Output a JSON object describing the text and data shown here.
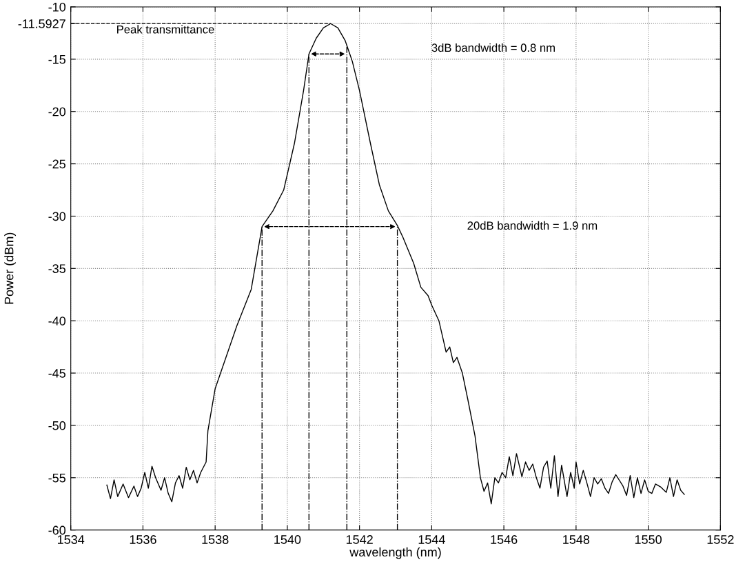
{
  "chart_data": {
    "type": "line",
    "xlabel": "wavelength (nm)",
    "ylabel": "Power (dBm)",
    "x": [
      1535.0,
      1535.1,
      1535.2,
      1535.3,
      1535.45,
      1535.6,
      1535.75,
      1535.85,
      1535.95,
      1536.05,
      1536.15,
      1536.25,
      1536.35,
      1536.5,
      1536.6,
      1536.7,
      1536.8,
      1536.9,
      1537.0,
      1537.1,
      1537.2,
      1537.3,
      1537.4,
      1537.5,
      1537.6,
      1537.75,
      1537.8,
      1537.9,
      1538.0,
      1538.3,
      1538.6,
      1539.0,
      1539.3,
      1539.6,
      1539.9,
      1540.2,
      1540.45,
      1540.6,
      1540.8,
      1541.0,
      1541.2,
      1541.4,
      1541.6,
      1541.8,
      1542.0,
      1542.3,
      1542.55,
      1542.8,
      1543.05,
      1543.2,
      1543.5,
      1543.7,
      1543.9,
      1544.0,
      1544.2,
      1544.4,
      1544.5,
      1544.6,
      1544.7,
      1544.85,
      1545.0,
      1545.2,
      1545.35,
      1545.45,
      1545.55,
      1545.65,
      1545.75,
      1545.85,
      1545.95,
      1546.05,
      1546.15,
      1546.25,
      1546.35,
      1546.5,
      1546.6,
      1546.7,
      1546.8,
      1546.9,
      1547.0,
      1547.1,
      1547.2,
      1547.3,
      1547.4,
      1547.5,
      1547.6,
      1547.75,
      1547.85,
      1547.95,
      1548.0,
      1548.1,
      1548.2,
      1548.3,
      1548.4,
      1548.5,
      1548.6,
      1548.7,
      1548.8,
      1548.9,
      1549.0,
      1549.1,
      1549.3,
      1549.4,
      1549.5,
      1549.6,
      1549.7,
      1549.8,
      1549.9,
      1550.0,
      1550.1,
      1550.2,
      1550.35,
      1550.5,
      1550.6,
      1550.7,
      1550.8,
      1550.9,
      1551.0
    ],
    "series": [
      {
        "color": "#000000",
        "values": [
          -55.7,
          -57.0,
          -55.2,
          -56.8,
          -55.6,
          -56.9,
          -55.8,
          -56.8,
          -56.0,
          -54.5,
          -56.0,
          -53.9,
          -55.0,
          -56.2,
          -55.0,
          -56.5,
          -57.3,
          -55.5,
          -54.8,
          -56.0,
          -54.0,
          -55.2,
          -54.3,
          -55.5,
          -54.5,
          -53.5,
          -50.5,
          -48.5,
          -46.5,
          -43.5,
          -40.5,
          -37.0,
          -31.0,
          -29.5,
          -27.5,
          -23.0,
          -18.0,
          -14.5,
          -13.0,
          -12.0,
          -11.6,
          -12.0,
          -13.2,
          -15.2,
          -18.0,
          -23.0,
          -27.0,
          -29.5,
          -30.9,
          -32.0,
          -34.5,
          -36.8,
          -37.6,
          -38.5,
          -40.0,
          -43.0,
          -42.5,
          -44.0,
          -43.5,
          -45.0,
          -47.5,
          -51.0,
          -55.0,
          -56.3,
          -55.5,
          -57.5,
          -55.0,
          -55.5,
          -54.5,
          -55.0,
          -53.0,
          -54.8,
          -52.7,
          -54.9,
          -53.5,
          -54.3,
          -53.7,
          -55.0,
          -56.0,
          -54.0,
          -53.4,
          -56.0,
          -52.9,
          -56.8,
          -53.8,
          -56.8,
          -54.5,
          -56.0,
          -53.5,
          -55.6,
          -54.3,
          -55.5,
          -56.8,
          -55.0,
          -55.6,
          -55.1,
          -56.0,
          -56.5,
          -55.4,
          -54.7,
          -55.8,
          -56.7,
          -54.8,
          -56.9,
          -55.0,
          -56.5,
          -55.2,
          -56.3,
          -56.5,
          -55.6,
          -55.9,
          -56.4,
          -55.0,
          -56.8,
          -55.2,
          -56.2,
          -56.6
        ]
      }
    ],
    "xlim": [
      1534,
      1552
    ],
    "xticks": [
      1534,
      1536,
      1538,
      1540,
      1542,
      1544,
      1546,
      1548,
      1550,
      1552
    ],
    "ylim": [
      -60,
      -10
    ],
    "yticks": [
      -60,
      -55,
      -50,
      -45,
      -40,
      -35,
      -30,
      -25,
      -20,
      -15,
      {
        "value": -11.5927,
        "label": "-11.5927"
      },
      -10
    ],
    "grid": true,
    "marker": "none",
    "line_style": "solid",
    "ref_lines": [
      {
        "axis": "y",
        "value": -11.5927,
        "line_style": "dashed",
        "color": "#000000"
      },
      {
        "axis": "x",
        "value": 1539.3,
        "line_style": "dashed",
        "color": "#000000"
      },
      {
        "axis": "x",
        "value": 1540.6,
        "line_style": "dashed",
        "color": "#000000"
      },
      {
        "axis": "x",
        "value": 1541.65,
        "line_style": "dashed",
        "color": "#000000"
      },
      {
        "axis": "x",
        "value": 1543.05,
        "line_style": "dashed",
        "color": "#000000"
      }
    ],
    "annotations": [
      "Peak transmittance",
      "3dB bandwidth = 0.8 nm",
      "20dB bandwidth = 1.9 nm"
    ]
  }
}
